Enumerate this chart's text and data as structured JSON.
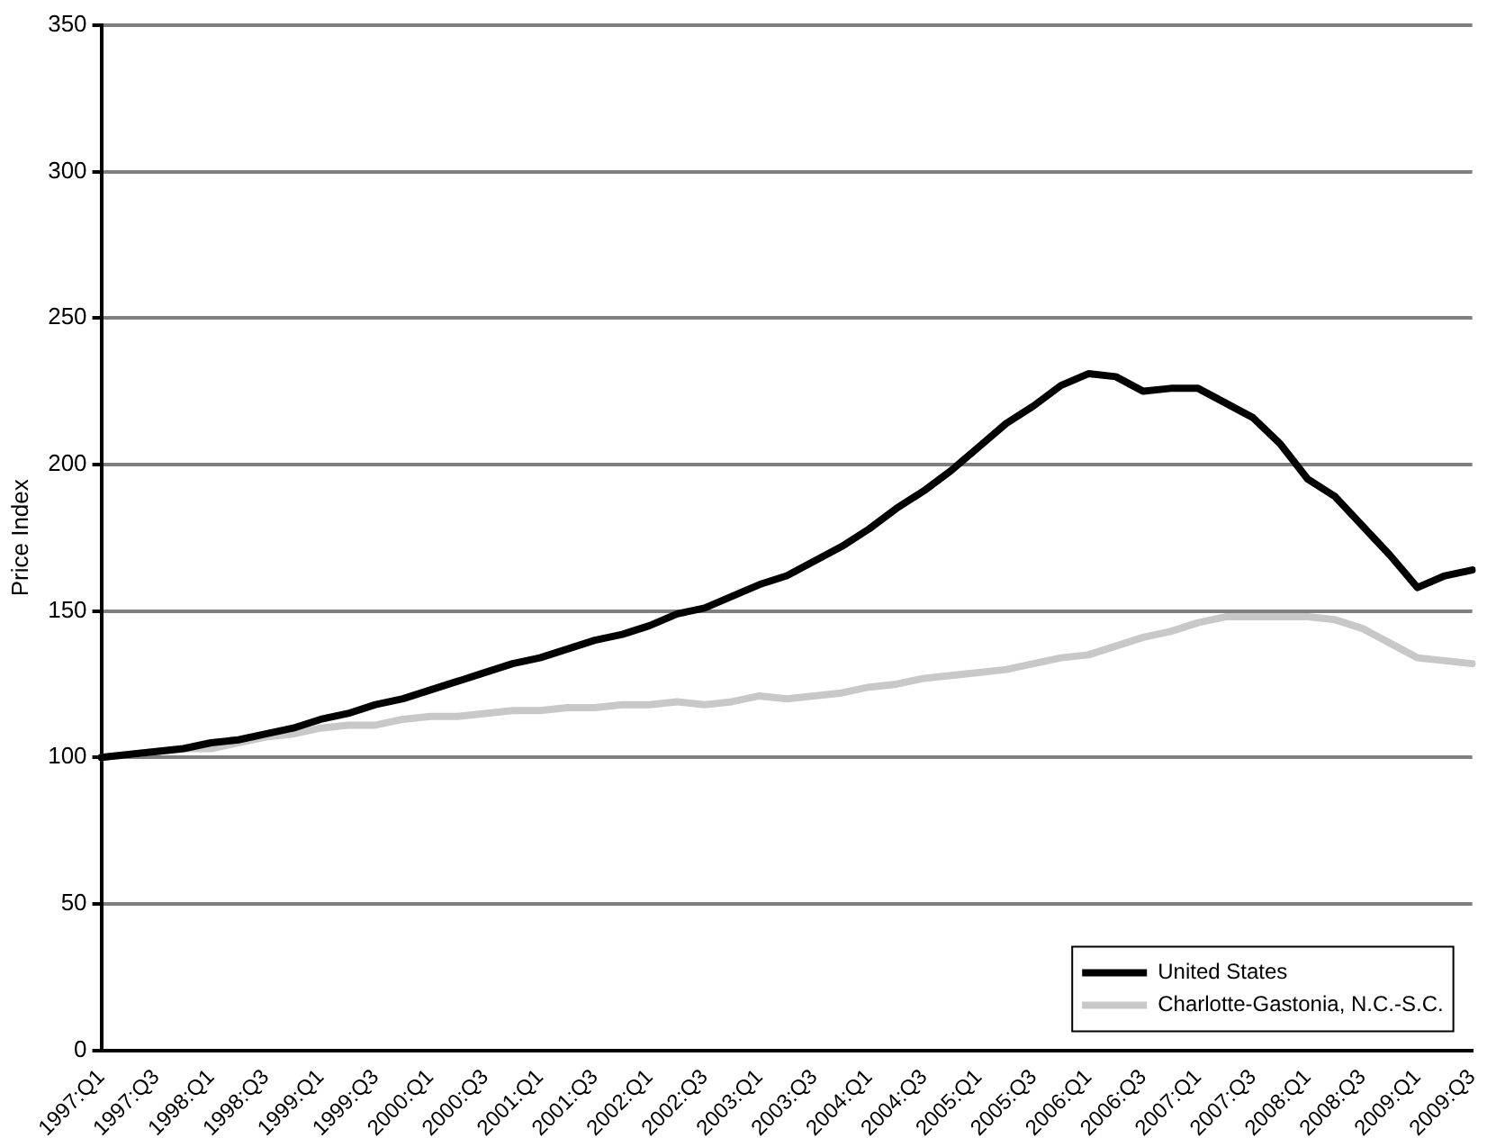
{
  "chart_data": {
    "type": "line",
    "ylabel": "Price Index",
    "categories": [
      "1997:Q1",
      null,
      "1997:Q3",
      null,
      "1998:Q1",
      null,
      "1998:Q3",
      null,
      "1999:Q1",
      null,
      "1999:Q3",
      null,
      "2000:Q1",
      null,
      "2000:Q3",
      null,
      "2001:Q1",
      null,
      "2001:Q3",
      null,
      "2002:Q1",
      null,
      "2002:Q3",
      null,
      "2003:Q1",
      null,
      "2003:Q3",
      null,
      "2004:Q1",
      null,
      "2004:Q3",
      null,
      "2005:Q1",
      null,
      "2005:Q3",
      null,
      "2006:Q1",
      null,
      "2006:Q3",
      null,
      "2007:Q1",
      null,
      "2007:Q3",
      null,
      "2008:Q1",
      null,
      "2008:Q3",
      null,
      "2009:Q1",
      null,
      "2009:Q3"
    ],
    "series": [
      {
        "name": "United States",
        "color": "#000000",
        "values": [
          100,
          101,
          102,
          103,
          105,
          106,
          108,
          110,
          113,
          115,
          118,
          120,
          123,
          126,
          129,
          132,
          134,
          137,
          140,
          142,
          145,
          149,
          151,
          155,
          159,
          162,
          167,
          172,
          178,
          185,
          191,
          198,
          206,
          214,
          220,
          227,
          231,
          230,
          225,
          226,
          226,
          221,
          216,
          207,
          195,
          189,
          179,
          169,
          158,
          162,
          164
        ]
      },
      {
        "name": "Charlotte-Gastonia, N.C.-S.C.",
        "color": "#c8c8c8",
        "values": [
          100,
          101,
          102,
          103,
          103,
          105,
          107,
          108,
          110,
          111,
          111,
          113,
          114,
          114,
          115,
          116,
          116,
          117,
          117,
          118,
          118,
          119,
          118,
          119,
          121,
          120,
          121,
          122,
          124,
          125,
          127,
          128,
          129,
          130,
          132,
          134,
          135,
          138,
          141,
          143,
          146,
          148,
          148,
          148,
          148,
          147,
          144,
          139,
          134,
          133,
          132
        ]
      }
    ],
    "ylim": [
      0,
      350
    ],
    "yticks": [
      0,
      50,
      100,
      150,
      200,
      250,
      300,
      350
    ],
    "grid": "y",
    "legend": "bottom right",
    "marker": "none",
    "line_style": "solid"
  }
}
